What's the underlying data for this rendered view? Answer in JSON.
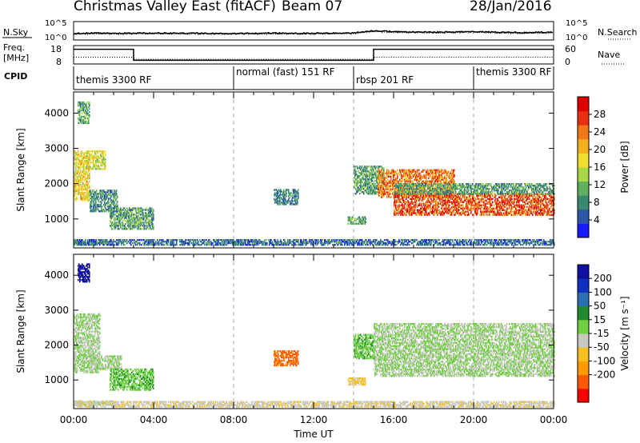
{
  "header": {
    "station": "Christmas Valley East (fitACF)",
    "beam": "Beam 07",
    "date": "28/Jan/2016"
  },
  "chart_data": [
    {
      "type": "line",
      "name": "noise",
      "left_label": "N.Sky",
      "right_label": "N.Search",
      "left_ticks": [
        "10^5",
        "10^0"
      ],
      "right_ticks": [
        "10^5",
        "10^0"
      ],
      "x": [
        0,
        1,
        2,
        3,
        4,
        6,
        8,
        10,
        12,
        14,
        15,
        16,
        18,
        20,
        22,
        24
      ],
      "sky_level": [
        0.35,
        0.38,
        0.35,
        0.36,
        0.37,
        0.36,
        0.35,
        0.37,
        0.36,
        0.38,
        0.5,
        0.45,
        0.42,
        0.45,
        0.4,
        0.42
      ],
      "search_level": [
        0.3,
        0.33,
        0.31,
        0.32,
        0.33,
        0.32,
        0.31,
        0.33,
        0.32,
        0.34,
        0.45,
        0.4,
        0.38,
        0.41,
        0.36,
        0.38
      ]
    },
    {
      "type": "line",
      "name": "freq-nave",
      "left_label_lines": [
        "Freq.",
        "[MHz]"
      ],
      "right_label": "Nave",
      "left_ticks": [
        "18",
        "8"
      ],
      "right_ticks": [
        "60",
        "0"
      ],
      "freq_steps": [
        {
          "t0": 0,
          "t1": 3.0,
          "mhz": 16
        },
        {
          "t0": 3.0,
          "t1": 15.0,
          "mhz": 10
        },
        {
          "t0": 15.0,
          "t1": 24,
          "mhz": 16
        }
      ],
      "nave_steps": [
        {
          "t0": 0,
          "t1": 3.0,
          "val": 22
        },
        {
          "t0": 3.0,
          "t1": 15.0,
          "val": 15
        },
        {
          "t0": 15.0,
          "t1": 24,
          "val": 22
        }
      ]
    },
    {
      "type": "table",
      "name": "cpid",
      "label": "CPID",
      "segments": [
        {
          "t0": 0,
          "label": "themis 3300 RF"
        },
        {
          "t0": 8.0,
          "label": "normal (fast) 151 RF"
        },
        {
          "t0": 14.0,
          "label": "rbsp 201 RF"
        },
        {
          "t0": 20.0,
          "label": "themis 3300 RF"
        }
      ]
    },
    {
      "type": "heatmap",
      "name": "power",
      "ylabel": "Slant Range [km]",
      "yticks": [
        "1000",
        "2000",
        "3000",
        "4000"
      ],
      "ylim": [
        180,
        4600
      ],
      "colorbar_label": "Power [dB]",
      "colorbar_ticks": [
        "4",
        "8",
        "12",
        "16",
        "20",
        "24",
        "28"
      ],
      "vlim": [
        0,
        32
      ],
      "colors": [
        "#1a1aff",
        "#2d55a8",
        "#3a8a72",
        "#60b060",
        "#a8d848",
        "#f0e030",
        "#f5b020",
        "#f07818",
        "#e83010",
        "#e00000"
      ],
      "regions": [
        {
          "t": [
            0.0,
            0.8
          ],
          "r": [
            1500,
            2900
          ],
          "v": 18
        },
        {
          "t": [
            0.2,
            0.8
          ],
          "r": [
            3700,
            4300
          ],
          "v": 10
        },
        {
          "t": [
            0.6,
            1.6
          ],
          "r": [
            2400,
            2900
          ],
          "v": 16
        },
        {
          "t": [
            0.8,
            2.2
          ],
          "r": [
            1200,
            1800
          ],
          "v": 8
        },
        {
          "t": [
            1.8,
            4.0
          ],
          "r": [
            700,
            1300
          ],
          "v": 10
        },
        {
          "t": [
            0.0,
            2.0
          ],
          "r": [
            250,
            350
          ],
          "v": 12
        },
        {
          "t": [
            0.0,
            24.0
          ],
          "r": [
            250,
            400
          ],
          "v": 6
        },
        {
          "t": [
            10.0,
            11.2
          ],
          "r": [
            1400,
            1850
          ],
          "v": 8
        },
        {
          "t": [
            13.7,
            14.6
          ],
          "r": [
            850,
            1050
          ],
          "v": 10
        },
        {
          "t": [
            14.0,
            15.5
          ],
          "r": [
            1700,
            2500
          ],
          "v": 10
        },
        {
          "t": [
            15.2,
            19.0
          ],
          "r": [
            1600,
            2400
          ],
          "v": 24
        },
        {
          "t": [
            16.0,
            24.0
          ],
          "r": [
            1100,
            1700
          ],
          "v": 26
        },
        {
          "t": [
            16.0,
            24.0
          ],
          "r": [
            1700,
            2000
          ],
          "v": 10
        }
      ]
    },
    {
      "type": "heatmap",
      "name": "velocity",
      "ylabel": "Slant Range [km]",
      "yticks": [
        "1000",
        "2000",
        "3000",
        "4000"
      ],
      "ylim": [
        180,
        4600
      ],
      "xlabel": "Time UT",
      "xticks": [
        "00:00",
        "04:00",
        "08:00",
        "12:00",
        "16:00",
        "20:00",
        "00:00"
      ],
      "xlim": [
        0,
        24
      ],
      "colorbar_label": "Velocity [m s⁻¹]",
      "colorbar_ticks": [
        "200",
        "100",
        "50",
        "15",
        "-15",
        "-50",
        "-100",
        "-200"
      ],
      "vlim": [
        -250,
        250
      ],
      "colors": [
        "#ff0000",
        "#ff5a00",
        "#ff9a00",
        "#f5c020",
        "#c8c8c0",
        "#6ed040",
        "#208a30",
        "#2a70b0",
        "#1030c0",
        "#1010a0"
      ],
      "regions": [
        {
          "t": [
            0.0,
            1.3
          ],
          "r": [
            1200,
            2900
          ],
          "v": 0
        },
        {
          "t": [
            0.8,
            2.4
          ],
          "r": [
            1300,
            1700
          ],
          "v": 0
        },
        {
          "t": [
            0.2,
            0.8
          ],
          "r": [
            3800,
            4300
          ],
          "v": 220
        },
        {
          "t": [
            1.8,
            4.0
          ],
          "r": [
            700,
            1300
          ],
          "v": 40
        },
        {
          "t": [
            0.0,
            2.0
          ],
          "r": [
            280,
            380
          ],
          "v": 5
        },
        {
          "t": [
            0.0,
            24.0
          ],
          "r": [
            220,
            400
          ],
          "v": -40
        },
        {
          "t": [
            10.0,
            11.2
          ],
          "r": [
            1400,
            1850
          ],
          "v": -160
        },
        {
          "t": [
            13.7,
            14.6
          ],
          "r": [
            850,
            1050
          ],
          "v": -60
        },
        {
          "t": [
            14.0,
            15.0
          ],
          "r": [
            1600,
            2300
          ],
          "v": 40
        },
        {
          "t": [
            15.0,
            24.0
          ],
          "r": [
            1100,
            2600
          ],
          "v": 0
        }
      ]
    }
  ]
}
